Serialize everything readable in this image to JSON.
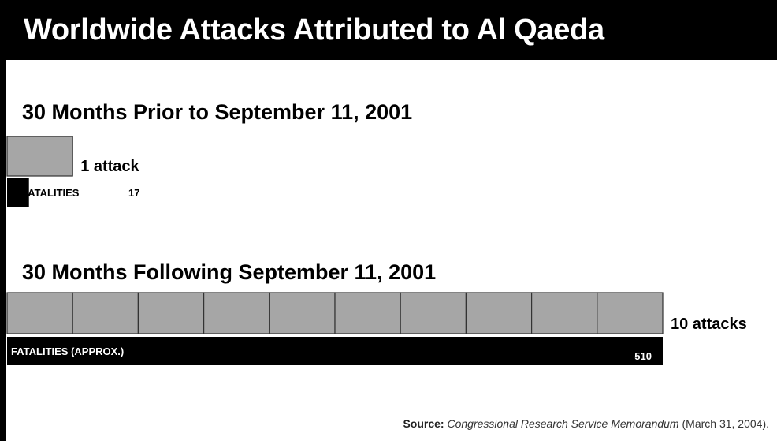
{
  "title": "Worldwide Attacks Attributed to Al Qaeda",
  "colors": {
    "attack_box": "#a6a6a6",
    "attack_border": "#333333",
    "fatality_bar": "#000000",
    "fatality_text": "#ffffff"
  },
  "chart_data": {
    "type": "bar",
    "title": "Worldwide Attacks Attributed to Al Qaeda",
    "series": [
      {
        "heading": "30 Months Prior to September 11, 2001",
        "attacks": 1,
        "attacks_label": "1 attack",
        "fatalities": 17,
        "fatalities_label": "FATALITIES",
        "fatalities_value_label": "17"
      },
      {
        "heading": "30 Months Following September 11, 2001",
        "attacks": 10,
        "attacks_label": "10 attacks",
        "fatalities": 510,
        "fatalities_label": "FATALITIES (APPROX.)",
        "fatalities_value_label": "510"
      }
    ]
  },
  "source": {
    "label": "Source:",
    "title": "Congressional Research Service Memorandum",
    "date": "(March 31, 2004)."
  }
}
